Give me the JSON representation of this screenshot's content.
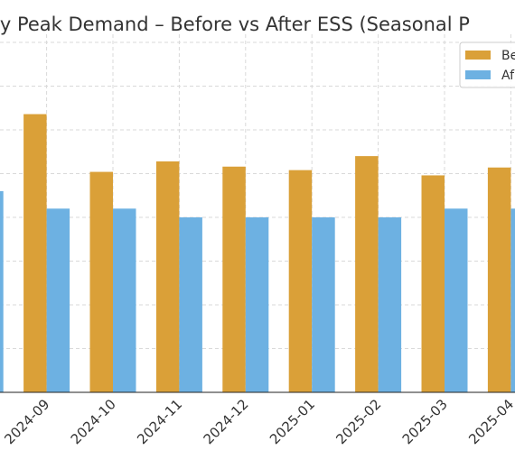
{
  "chart_data": {
    "type": "bar",
    "title": "ly Peak Demand – Before vs After ESS (Seasonal P",
    "categories": [
      "2024-09",
      "2024-10",
      "2024-11",
      "2024-12",
      "2025-01",
      "2025-02",
      "2025-03",
      "2025-04"
    ],
    "series": [
      {
        "name": "Be",
        "color": "#DAA038",
        "values": [
          318,
          252,
          264,
          258,
          254,
          270,
          248,
          257
        ]
      },
      {
        "name": "Af",
        "color": "#6DB1E2",
        "values": [
          210,
          210,
          200,
          200,
          200,
          200,
          210,
          210
        ]
      }
    ],
    "partial_left_bar": {
      "series": "Af",
      "value": 230
    },
    "ylim": [
      0,
      450
    ],
    "gridlines_y": [
      0,
      50,
      100,
      150,
      200,
      250,
      300,
      350,
      400
    ],
    "grid": true,
    "legend_position": "top-right"
  }
}
